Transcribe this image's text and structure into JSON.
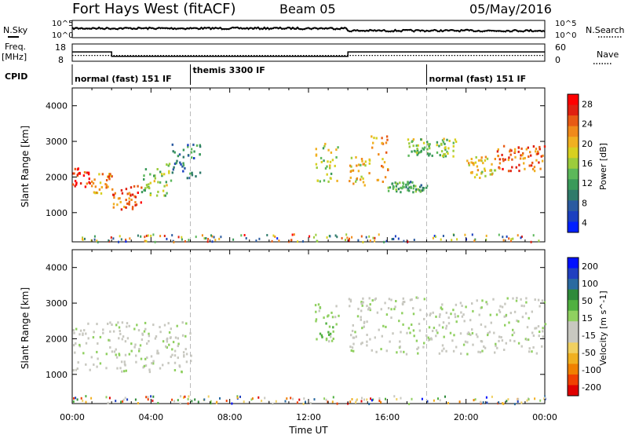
{
  "header": {
    "title": "Fort Hays West (fitACF)",
    "beam": "Beam 05",
    "date": "05/May/2016"
  },
  "panel_labels": {
    "nsky": "N.Sky",
    "nsearch": "N.Search",
    "freq": "Freq.",
    "freq_unit": "[MHz]",
    "nave": "Nave",
    "cpid": "CPID"
  },
  "noise_ticks": {
    "left": [
      "10^5",
      "10^0"
    ],
    "right": [
      "10^5",
      "10^0"
    ]
  },
  "freq_ticks": {
    "left": [
      "18",
      "8"
    ],
    "right": [
      "60",
      "0"
    ]
  },
  "cpid_segments": [
    {
      "label": "normal (fast) 151 IF",
      "start": 0,
      "end": 6
    },
    {
      "label": "themis 3300 IF",
      "start": 6,
      "end": 18
    },
    {
      "label": "normal (fast) 151 IF",
      "start": 18,
      "end": 24
    }
  ],
  "colorbars": {
    "power": {
      "label": "Power [dB]",
      "ticks": [
        "28",
        "24",
        "20",
        "16",
        "12",
        "8",
        "4"
      ],
      "colors": [
        "#0020ff",
        "#1a3fc0",
        "#2a5aa0",
        "#2f7a6a",
        "#3a9a5a",
        "#5cb85a",
        "#9ccc3c",
        "#d7d020",
        "#f0b020",
        "#f08a1a",
        "#e85a14",
        "#e02010",
        "#ff0000"
      ]
    },
    "velocity": {
      "label": "Velocity [m s^-1]",
      "ticks": [
        "200",
        "100",
        "50",
        "15",
        "-15",
        "-50",
        "-100",
        "-200"
      ],
      "colors": [
        "#e00000",
        "#f04000",
        "#f08000",
        "#f0b020",
        "#f0d060",
        "#c8c8c0",
        "#c8c8c0",
        "#90d060",
        "#50b040",
        "#2f8a3a",
        "#2a6aa0",
        "#2040c0",
        "#0010ff"
      ]
    }
  },
  "chart_data": {
    "type": "heatmap",
    "xlabel": "Time UT",
    "x_ticks": [
      "00:00",
      "04:00",
      "08:00",
      "12:00",
      "16:00",
      "20:00",
      "00:00"
    ],
    "x_range_hours": [
      0,
      24
    ],
    "ylabel": "Slant Range [km]",
    "y_ticks": [
      1000,
      2000,
      3000,
      4000
    ],
    "ylim": [
      180,
      4500
    ],
    "mode_changes_hours": [
      6,
      18
    ],
    "freq_mhz": [
      {
        "start": 0,
        "end": 2,
        "value": 13.5
      },
      {
        "start": 2,
        "end": 14,
        "value": 10.4
      },
      {
        "start": 14,
        "end": 24,
        "value": 13.5
      }
    ],
    "nave": [
      {
        "start": 0,
        "end": 24,
        "value": 18
      }
    ],
    "panels": [
      {
        "name": "Power",
        "unit": "dB",
        "scale": [
          0,
          30
        ],
        "features": [
          {
            "t0": 0.0,
            "t1": 1.0,
            "r0": 1750,
            "r1": 2300,
            "value": 26
          },
          {
            "t0": 1.0,
            "t1": 2.0,
            "r0": 1550,
            "r1": 2200,
            "value": 22
          },
          {
            "t0": 2.0,
            "t1": 3.5,
            "r0": 1100,
            "r1": 1850,
            "value": 24
          },
          {
            "t0": 3.5,
            "t1": 5.0,
            "r0": 1500,
            "r1": 2400,
            "value": 14
          },
          {
            "t0": 5.0,
            "t1": 6.5,
            "r0": 2000,
            "r1": 3000,
            "value": 8
          },
          {
            "t0": 12.3,
            "t1": 13.5,
            "r0": 1900,
            "r1": 3000,
            "value": 16
          },
          {
            "t0": 14.0,
            "t1": 15.0,
            "r0": 1800,
            "r1": 2700,
            "value": 18
          },
          {
            "t0": 15.0,
            "t1": 16.0,
            "r0": 1900,
            "r1": 3200,
            "value": 22
          },
          {
            "t0": 16.0,
            "t1": 18.0,
            "r0": 1600,
            "r1": 1900,
            "value": 10
          },
          {
            "t0": 17.0,
            "t1": 19.5,
            "r0": 2600,
            "r1": 3100,
            "value": 14
          },
          {
            "t0": 20.0,
            "t1": 21.5,
            "r0": 2000,
            "r1": 2600,
            "value": 18
          },
          {
            "t0": 21.5,
            "t1": 24.0,
            "r0": 2200,
            "r1": 2900,
            "value": 24
          }
        ]
      },
      {
        "name": "Velocity",
        "unit": "m s^-1",
        "scale": [
          -200,
          200
        ],
        "features": [
          {
            "t0": 0.0,
            "t1": 6.0,
            "r0": 1100,
            "r1": 2500,
            "value": 0
          },
          {
            "t0": 12.3,
            "t1": 13.5,
            "r0": 1900,
            "r1": 3000,
            "value": 40
          },
          {
            "t0": 14.0,
            "t1": 24.0,
            "r0": 1600,
            "r1": 3200,
            "value": 0
          }
        ]
      }
    ]
  }
}
